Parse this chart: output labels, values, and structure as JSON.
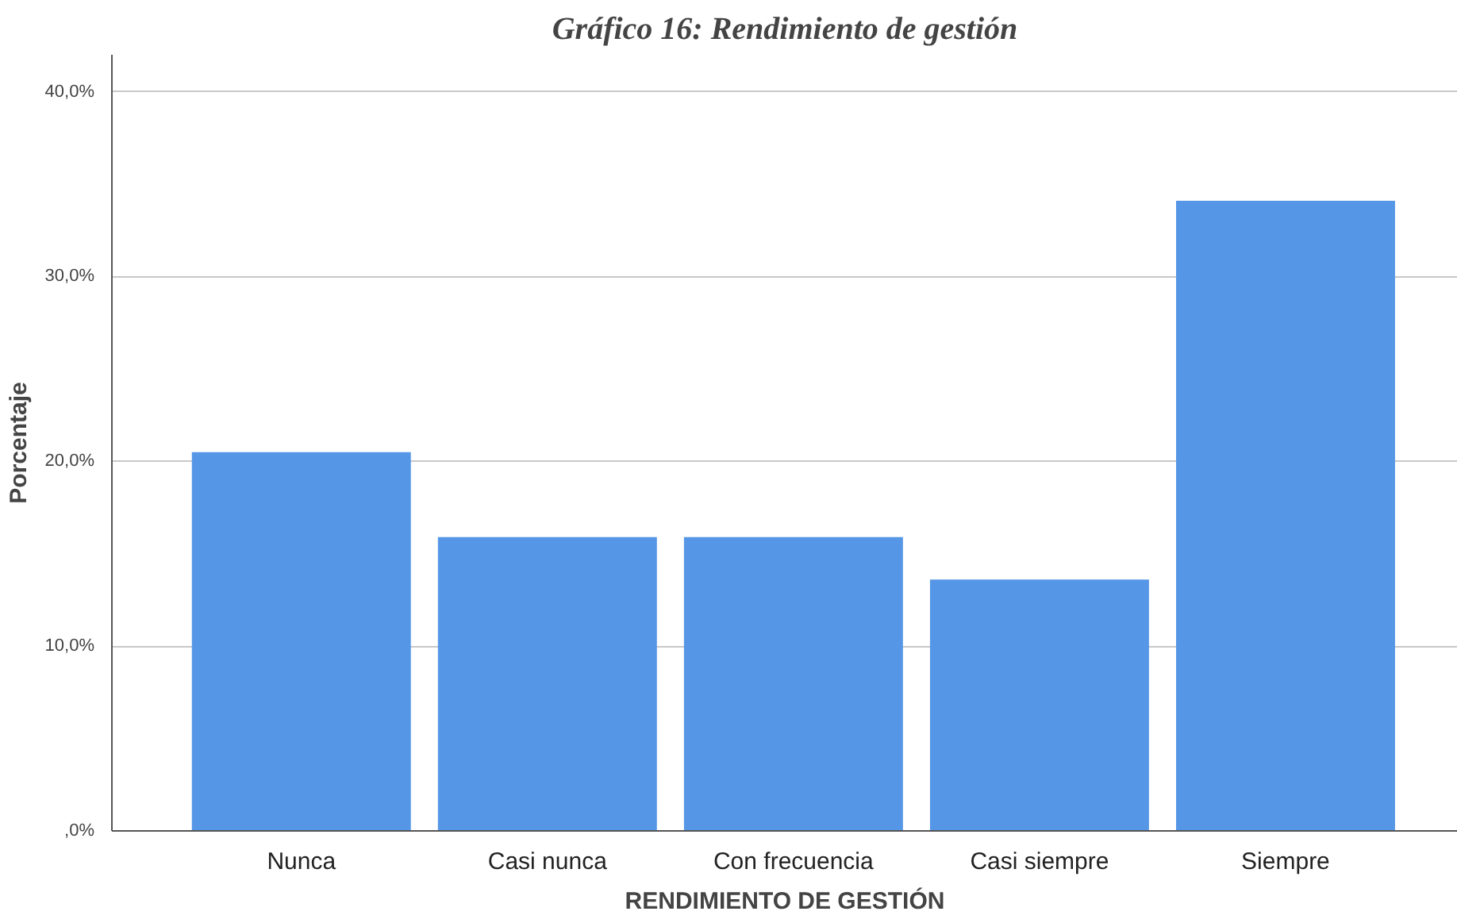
{
  "chart_data": {
    "type": "bar",
    "title": "Gráfico 16: Rendimiento de gestión",
    "xlabel": "RENDIMIENTO DE GESTIÓN",
    "ylabel": "Porcentaje",
    "categories": [
      "Nunca",
      "Casi nunca",
      "Con frecuencia",
      "Casi siempre",
      "Siempre"
    ],
    "values": [
      20.5,
      15.9,
      15.9,
      13.6,
      34.1
    ],
    "color": "#5596e6",
    "ylim": [
      0,
      42
    ],
    "yticks": [
      {
        "value": 0,
        "label": ",0%"
      },
      {
        "value": 10,
        "label": "10,0%"
      },
      {
        "value": 20,
        "label": "20,0%"
      },
      {
        "value": 30,
        "label": "30,0%"
      },
      {
        "value": 40,
        "label": "40,0%"
      }
    ],
    "grid": "y"
  }
}
